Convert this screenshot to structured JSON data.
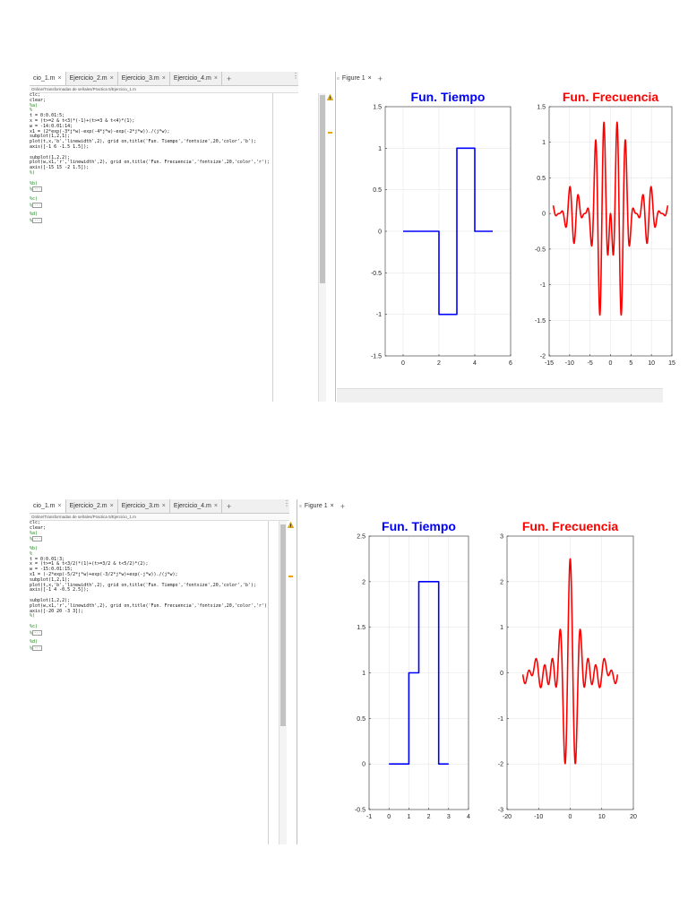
{
  "screenshots": [
    {
      "tabs": [
        {
          "label": "cio_1.m",
          "active": true
        },
        {
          "label": "Ejercicio_2.m"
        },
        {
          "label": "Ejercicio_3.m"
        },
        {
          "label": "Ejercicio_4.m"
        }
      ],
      "path": "Online/Transformadas de señales/Practica 5/Ejercicio_1.m",
      "figure_tab": "Figure 1",
      "code": [
        {
          "t": "clc;",
          "k": "n"
        },
        {
          "t": "clear;",
          "k": "n"
        },
        {
          "t": "%a)",
          "k": "c"
        },
        {
          "t": "%",
          "k": "c"
        },
        {
          "t": "t = 0:0.01:5;",
          "k": "n"
        },
        {
          "t": "x = (t>=2 & t<3)*(-1)+(t>=3 & t<4)*(1);",
          "k": "n"
        },
        {
          "t": "w = -14:0.01:14;",
          "k": "n"
        },
        {
          "t": "x1 = (2*exp(-3*j*w)-exp(-4*j*w)-exp(-2*j*w))./(j*w);",
          "k": "n"
        },
        {
          "t": "subplot(1,2,1);",
          "k": "n"
        },
        {
          "t": "plot(t,x,'b','linewidth',2), grid on,title('Fun. Tiempo','fontsize',20,'color','b');",
          "k": "n"
        },
        {
          "t": "axis([-1 6 -1.5 1.5]);",
          "k": "n"
        },
        {
          "t": "",
          "k": "n"
        },
        {
          "t": "subplot(1,2,2);",
          "k": "n"
        },
        {
          "t": "plot(w,x1,'r','linewidth',2), grid on,title('Fun. Frecuencia','fontsize',20,'color','r');",
          "k": "n"
        },
        {
          "t": "axis([-15 15 -2 1.5]);",
          "k": "n"
        },
        {
          "t": "%)",
          "k": "c"
        },
        {
          "t": "",
          "k": "n"
        },
        {
          "t": "%b)",
          "k": "c"
        },
        {
          "t": "%",
          "k": "f"
        },
        {
          "t": "",
          "k": "n"
        },
        {
          "t": "%c)",
          "k": "c"
        },
        {
          "t": "%",
          "k": "f"
        },
        {
          "t": "",
          "k": "n"
        },
        {
          "t": "%d)",
          "k": "c"
        },
        {
          "t": "%",
          "k": "f"
        }
      ],
      "fold_label": "···",
      "plots": [
        {
          "title": "Fun. Tiempo",
          "color": "#0000ff",
          "xlim": [
            -1,
            6
          ],
          "ylim": [
            -1.5,
            1.5
          ],
          "xticks": [
            "0",
            "2",
            "4",
            "6"
          ],
          "yticks": [
            "1.5",
            "1",
            "0.5",
            "0",
            "-0.5",
            "-1",
            "-1.5"
          ]
        },
        {
          "title": "Fun. Frecuencia",
          "color": "#ff0000",
          "xlim": [
            -15,
            15
          ],
          "ylim": [
            -2,
            1.5
          ],
          "xticks": [
            "-15",
            "-10",
            "-5",
            "0",
            "5",
            "10",
            "15"
          ],
          "yticks": [
            "1.5",
            "1",
            "0.5",
            "0",
            "-0.5",
            "-1",
            "-1.5",
            "-2"
          ]
        }
      ]
    },
    {
      "tabs": [
        {
          "label": "cio_1.m",
          "active": true
        },
        {
          "label": "Ejercicio_2.m"
        },
        {
          "label": "Ejercicio_3.m"
        },
        {
          "label": "Ejercicio_4.m"
        }
      ],
      "path": "Online/Transformadas de señales/Practica 5/Ejercicio_1.m",
      "figure_tab": "Figure 1",
      "code": [
        {
          "t": "clc;",
          "k": "n"
        },
        {
          "t": "clear;",
          "k": "n"
        },
        {
          "t": "%a)",
          "k": "c"
        },
        {
          "t": "%",
          "k": "f"
        },
        {
          "t": "",
          "k": "n"
        },
        {
          "t": "%b)",
          "k": "c"
        },
        {
          "t": "%",
          "k": "c"
        },
        {
          "t": "t = 0:0.01:3;",
          "k": "n"
        },
        {
          "t": "x = (t>=1 & t<3/2)*(1)+(t>=3/2 & t<5/2)*(2);",
          "k": "n"
        },
        {
          "t": "w = -15:0.01:15;",
          "k": "n"
        },
        {
          "t": "x1 = (-2*exp(-5/2*j*w)+exp(-3/2*j*w)+exp(-j*w))./(j*w);",
          "k": "n"
        },
        {
          "t": "subplot(1,2,1);",
          "k": "n"
        },
        {
          "t": "plot(t,x,'b','linewidth',2), grid on,title('Fun. Tiempo','fontsize',20,'color','b');",
          "k": "n"
        },
        {
          "t": "axis([-1 4 -0.5 2.5]);",
          "k": "n"
        },
        {
          "t": "",
          "k": "n"
        },
        {
          "t": "subplot(1,2,2);",
          "k": "n"
        },
        {
          "t": "plot(w,x1,'r','linewidth',2), grid on,title('Fun. Frecuencia','fontsize',20,'color','r');",
          "k": "n"
        },
        {
          "t": "axis([-20 20 -3 3]);",
          "k": "n"
        },
        {
          "t": "%)",
          "k": "c"
        },
        {
          "t": "",
          "k": "n"
        },
        {
          "t": "%c)",
          "k": "c"
        },
        {
          "t": "%",
          "k": "f"
        },
        {
          "t": "",
          "k": "n"
        },
        {
          "t": "%d)",
          "k": "c"
        },
        {
          "t": "%",
          "k": "f"
        }
      ],
      "fold_label": "···",
      "plots": [
        {
          "title": "Fun. Tiempo",
          "color": "#0000ff",
          "xlim": [
            -1,
            4
          ],
          "ylim": [
            -0.5,
            2.5
          ],
          "xticks": [
            "-1",
            "0",
            "1",
            "2",
            "3",
            "4"
          ],
          "yticks": [
            "2.5",
            "2",
            "1.5",
            "1",
            "0.5",
            "0",
            "-0.5"
          ]
        },
        {
          "title": "Fun. Frecuencia",
          "color": "#ff0000",
          "xlim": [
            -20,
            20
          ],
          "ylim": [
            -3,
            3
          ],
          "xticks": [
            "-20",
            "-10",
            "0",
            "10",
            "20"
          ],
          "yticks": [
            "3",
            "2",
            "1",
            "0",
            "-1",
            "-2",
            "-3"
          ]
        }
      ]
    }
  ],
  "chart_data": [
    {
      "type": "line",
      "title": "Fun. Tiempo",
      "xlim": [
        -1,
        6
      ],
      "ylim": [
        -1.5,
        1.5
      ],
      "grid": true,
      "x": [
        0,
        2,
        2,
        3,
        3,
        4,
        4,
        5
      ],
      "y": [
        0,
        0,
        -1,
        -1,
        1,
        1,
        0,
        0
      ]
    },
    {
      "type": "line",
      "title": "Fun. Frecuencia",
      "xlim": [
        -15,
        15
      ],
      "ylim": [
        -2,
        1.5
      ],
      "grid": true,
      "function": "x1 = (2*exp(-3*j*w)-exp(-4*j*w)-exp(-2*j*w))./(j*w)",
      "w_range": [
        -14,
        14
      ]
    },
    {
      "type": "line",
      "title": "Fun. Tiempo",
      "xlim": [
        -1,
        4
      ],
      "ylim": [
        -0.5,
        2.5
      ],
      "grid": true,
      "x": [
        0,
        1,
        1,
        1.5,
        1.5,
        2.5,
        2.5,
        3
      ],
      "y": [
        0,
        0,
        1,
        1,
        2,
        2,
        0,
        0
      ]
    },
    {
      "type": "line",
      "title": "Fun. Frecuencia",
      "xlim": [
        -20,
        20
      ],
      "ylim": [
        -3,
        3
      ],
      "grid": true,
      "function": "x1 = (-2*exp(-5/2*j*w)+exp(-3/2*j*w)+exp(-j*w))./(j*w)",
      "w_range": [
        -15,
        15
      ]
    }
  ]
}
